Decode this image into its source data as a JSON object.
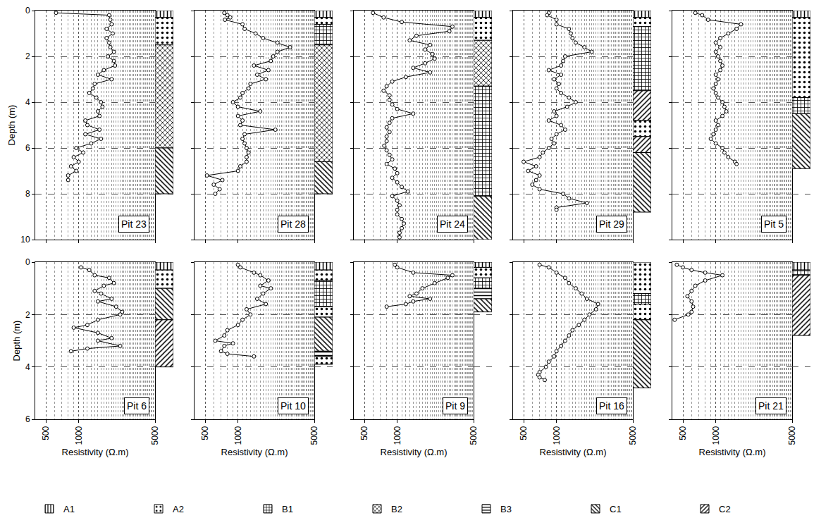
{
  "legend": "bottom",
  "units": [
    {
      "name": "A1",
      "marker": "vertical"
    },
    {
      "name": "A2",
      "marker": "dots"
    },
    {
      "name": "B1",
      "marker": "plus"
    },
    {
      "name": "B2",
      "marker": "cross"
    },
    {
      "name": "B3",
      "marker": "horizontal"
    },
    {
      "name": "C1",
      "marker": "backslash"
    },
    {
      "name": "C2",
      "marker": "slash"
    }
  ],
  "chart_data": [
    {
      "type": "line",
      "title": "Pit 23",
      "y_label": "Depth (m)",
      "color": "#000000",
      "marker": "circle",
      "log": "x",
      "grid": true,
      "tick_labels": "y",
      "xlim": [
        400,
        5000
      ],
      "xticks": [
        500,
        1000,
        5000
      ],
      "ylim": [
        0,
        10
      ],
      "yticks": [
        0,
        2,
        4,
        6,
        8,
        10
      ],
      "x": [
        620,
        1900,
        1950,
        2000,
        1800,
        2050,
        1800,
        1900,
        1950,
        2100,
        1850,
        2100,
        2150,
        1700,
        1500,
        2000,
        1400,
        1350,
        1250,
        1450,
        1600,
        1650,
        1500,
        1550,
        1150,
        1200,
        1550,
        1150,
        1600,
        1300,
        950,
        1100,
        900,
        1000,
        850,
        950,
        800,
        800
      ],
      "values": [
        0.1,
        0.2,
        0.4,
        0.6,
        0.8,
        1.0,
        1.2,
        1.4,
        1.6,
        1.8,
        2.0,
        2.2,
        2.4,
        2.6,
        2.8,
        3.0,
        3.2,
        3.4,
        3.6,
        3.8,
        4.0,
        4.2,
        4.4,
        4.6,
        4.8,
        5.0,
        5.2,
        5.4,
        5.6,
        5.8,
        6.0,
        6.2,
        6.4,
        6.6,
        6.8,
        7.0,
        7.2,
        7.4
      ],
      "layers": [
        {
          "unit": "A1",
          "top": 0,
          "bottom": 0.3
        },
        {
          "unit": "A2",
          "top": 0.3,
          "bottom": 1.5
        },
        {
          "unit": "B2",
          "top": 1.5,
          "bottom": 6.0
        },
        {
          "unit": "C1",
          "top": 6.0,
          "bottom": 8.0
        }
      ]
    },
    {
      "type": "line",
      "title": "Pit 28",
      "color": "#000000",
      "marker": "circle",
      "log": "x",
      "grid": true,
      "tick_labels": false,
      "xlim": [
        400,
        5000
      ],
      "xticks": [
        500,
        1000,
        5000
      ],
      "ylim": [
        0,
        10
      ],
      "yticks": [
        0,
        2,
        4,
        6,
        8,
        10
      ],
      "x": [
        750,
        800,
        850,
        760,
        1100,
        1150,
        1450,
        1700,
        2300,
        3000,
        2300,
        2100,
        2000,
        1400,
        1900,
        1500,
        1800,
        1300,
        1250,
        1100,
        1050,
        900,
        1000,
        1600,
        1000,
        1100,
        1050,
        2200,
        1150,
        1100,
        1150,
        1200,
        1250,
        1200,
        1200,
        1050,
        1000,
        520,
        720,
        600,
        680,
        620
      ],
      "values": [
        0.1,
        0.2,
        0.3,
        0.4,
        0.6,
        0.8,
        1.0,
        1.2,
        1.4,
        1.6,
        1.8,
        2.0,
        2.2,
        2.4,
        2.6,
        2.8,
        3.0,
        3.2,
        3.4,
        3.6,
        3.8,
        4.0,
        4.2,
        4.4,
        4.6,
        4.8,
        5.0,
        5.2,
        5.4,
        5.6,
        5.8,
        6.0,
        6.2,
        6.4,
        6.6,
        6.8,
        7.0,
        7.2,
        7.4,
        7.6,
        7.8,
        8.0
      ],
      "layers": [
        {
          "unit": "A1",
          "top": 0,
          "bottom": 0.3
        },
        {
          "unit": "A2",
          "top": 0.3,
          "bottom": 0.6
        },
        {
          "unit": "B1",
          "top": 0.6,
          "bottom": 1.5
        },
        {
          "unit": "B2",
          "top": 1.5,
          "bottom": 6.6
        },
        {
          "unit": "C1",
          "top": 6.6,
          "bottom": 8.0
        }
      ]
    },
    {
      "type": "line",
      "title": "Pit 24",
      "color": "#000000",
      "marker": "circle",
      "log": "x",
      "grid": true,
      "tick_labels": false,
      "xlim": [
        400,
        5000
      ],
      "xticks": [
        500,
        1000,
        5000
      ],
      "ylim": [
        0,
        10
      ],
      "yticks": [
        0,
        2,
        4,
        6,
        8,
        10
      ],
      "x": [
        600,
        750,
        1100,
        3200,
        3000,
        1500,
        1300,
        2000,
        1800,
        2100,
        2200,
        1800,
        1400,
        2000,
        1200,
        900,
        800,
        750,
        850,
        850,
        900,
        1000,
        1400,
        900,
        850,
        800,
        850,
        800,
        800,
        760,
        800,
        850,
        900,
        800,
        950,
        1000,
        900,
        1000,
        1100,
        1250,
        900,
        1000,
        1050,
        1000,
        1000,
        1100,
        1150,
        1100,
        1050,
        1050
      ],
      "values": [
        0.1,
        0.3,
        0.5,
        0.7,
        0.9,
        1.1,
        1.3,
        1.5,
        1.7,
        1.9,
        2.1,
        2.3,
        2.5,
        2.7,
        2.9,
        3.1,
        3.3,
        3.5,
        3.7,
        3.9,
        4.1,
        4.3,
        4.5,
        4.7,
        4.9,
        5.1,
        5.3,
        5.5,
        5.7,
        5.9,
        6.1,
        6.3,
        6.5,
        6.7,
        6.9,
        7.1,
        7.3,
        7.5,
        7.7,
        7.9,
        8.1,
        8.3,
        8.5,
        8.7,
        8.9,
        9.1,
        9.3,
        9.5,
        9.7,
        9.9
      ],
      "layers": [
        {
          "unit": "A1",
          "top": 0,
          "bottom": 0.3
        },
        {
          "unit": "A2",
          "top": 0.3,
          "bottom": 1.3
        },
        {
          "unit": "B2",
          "top": 1.3,
          "bottom": 3.3
        },
        {
          "unit": "B1",
          "top": 3.3,
          "bottom": 8.1
        },
        {
          "unit": "C1",
          "top": 8.1,
          "bottom": 10
        }
      ]
    },
    {
      "type": "line",
      "title": "Pit 29",
      "color": "#000000",
      "marker": "circle",
      "log": "x",
      "grid": true,
      "tick_labels": false,
      "xlim": [
        400,
        5000
      ],
      "xticks": [
        500,
        1000,
        5000
      ],
      "ylim": [
        0,
        10
      ],
      "yticks": [
        0,
        2,
        4,
        6,
        8,
        10
      ],
      "x": [
        850,
        820,
        1000,
        1000,
        1300,
        1350,
        1400,
        1500,
        1800,
        2100,
        1200,
        1150,
        1100,
        850,
        1100,
        950,
        1050,
        1000,
        1100,
        1300,
        1500,
        1250,
        950,
        1000,
        850,
        1100,
        1200,
        1000,
        900,
        950,
        850,
        750,
        700,
        500,
        650,
        550,
        700,
        650,
        600,
        700,
        1150,
        1300,
        1900,
        1000,
        1000
      ],
      "values": [
        0.1,
        0.2,
        0.4,
        0.6,
        0.8,
        1.0,
        1.2,
        1.4,
        1.6,
        1.8,
        2.0,
        2.2,
        2.4,
        2.6,
        2.8,
        3.0,
        3.2,
        3.4,
        3.6,
        3.8,
        4.0,
        4.2,
        4.4,
        4.6,
        4.8,
        5.0,
        5.2,
        5.4,
        5.6,
        5.8,
        6.0,
        6.2,
        6.4,
        6.6,
        6.8,
        7.0,
        7.2,
        7.4,
        7.6,
        7.8,
        8.0,
        8.2,
        8.4,
        8.6,
        8.7
      ],
      "layers": [
        {
          "unit": "A1",
          "top": 0,
          "bottom": 0.3
        },
        {
          "unit": "A2",
          "top": 0.3,
          "bottom": 0.7
        },
        {
          "unit": "B1",
          "top": 0.7,
          "bottom": 3.5
        },
        {
          "unit": "C2",
          "top": 3.5,
          "bottom": 4.8
        },
        {
          "unit": "A2",
          "top": 4.8,
          "bottom": 5.5
        },
        {
          "unit": "C2",
          "top": 5.5,
          "bottom": 6.2
        },
        {
          "unit": "C1",
          "top": 6.2,
          "bottom": 8.8
        }
      ]
    },
    {
      "type": "line",
      "title": "Pit 5",
      "color": "#000000",
      "marker": "circle",
      "log": "x",
      "grid": true,
      "tick_labels": false,
      "xlim": [
        400,
        5000
      ],
      "xticks": [
        500,
        1000,
        5000
      ],
      "ylim": [
        0,
        10
      ],
      "yticks": [
        0,
        2,
        4,
        6,
        8,
        10
      ],
      "x": [
        650,
        750,
        850,
        1700,
        1550,
        1300,
        1100,
        1000,
        1100,
        1000,
        1050,
        1100,
        1150,
        1100,
        1000,
        1050,
        1000,
        950,
        1000,
        1050,
        1150,
        1200,
        1250,
        1150,
        1000,
        1050,
        1000,
        950,
        900,
        1000,
        1150,
        1200,
        1300,
        1500,
        1550
      ],
      "values": [
        0.1,
        0.2,
        0.4,
        0.6,
        0.8,
        1.0,
        1.2,
        1.4,
        1.6,
        1.8,
        2.0,
        2.2,
        2.4,
        2.6,
        2.8,
        3.0,
        3.2,
        3.4,
        3.6,
        3.8,
        4.0,
        4.2,
        4.4,
        4.6,
        4.8,
        5.0,
        5.2,
        5.4,
        5.6,
        5.8,
        6.0,
        6.2,
        6.4,
        6.6,
        6.7
      ],
      "layers": [
        {
          "unit": "A1",
          "top": 0,
          "bottom": 0.3
        },
        {
          "unit": "A2",
          "top": 0.3,
          "bottom": 3.8
        },
        {
          "unit": "B1",
          "top": 3.8,
          "bottom": 4.5
        },
        {
          "unit": "C1",
          "top": 4.5,
          "bottom": 6.9
        }
      ]
    },
    {
      "type": "line",
      "title": "Pit 6",
      "x_label": "Resistivity (Ω.m)",
      "y_label": "Depth (m)",
      "color": "#000000",
      "marker": "circle",
      "log": "x",
      "grid": true,
      "tick_labels": true,
      "xlim": [
        400,
        5000
      ],
      "xticks": [
        500,
        1000,
        5000
      ],
      "ylim": [
        0,
        6
      ],
      "yticks": [
        0,
        2,
        4,
        6
      ],
      "x": [
        1050,
        1250,
        1400,
        1900,
        2100,
        1700,
        1400,
        1600,
        2000,
        1500,
        2200,
        2500,
        2400,
        1500,
        1200,
        900,
        1500,
        2000,
        1500,
        2400,
        1200,
        850
      ],
      "values": [
        0.2,
        0.3,
        0.5,
        0.6,
        0.8,
        0.9,
        1.1,
        1.2,
        1.4,
        1.5,
        1.7,
        1.9,
        2.0,
        2.2,
        2.4,
        2.5,
        2.7,
        2.9,
        3.0,
        3.2,
        3.3,
        3.4
      ],
      "layers": [
        {
          "unit": "A1",
          "top": 0,
          "bottom": 0.3
        },
        {
          "unit": "A2",
          "top": 0.3,
          "bottom": 1.0
        },
        {
          "unit": "C1",
          "top": 1.0,
          "bottom": 2.2
        },
        {
          "unit": "C2",
          "top": 2.2,
          "bottom": 4.0
        }
      ]
    },
    {
      "type": "line",
      "title": "Pit 10",
      "x_label": "Resistivity (Ω.m)",
      "color": "#000000",
      "marker": "circle",
      "log": "x",
      "grid": true,
      "tick_labels": "x",
      "xlim": [
        400,
        5000
      ],
      "xticks": [
        500,
        1000,
        5000
      ],
      "ylim": [
        0,
        6
      ],
      "yticks": [
        0,
        2,
        4,
        6
      ],
      "x": [
        1000,
        1050,
        1400,
        1600,
        1900,
        1600,
        2000,
        1700,
        1500,
        1800,
        1200,
        1300,
        1100,
        1000,
        800,
        750,
        620,
        900,
        750,
        700,
        800,
        1400
      ],
      "values": [
        0.1,
        0.2,
        0.4,
        0.5,
        0.7,
        0.9,
        1.0,
        1.2,
        1.4,
        1.6,
        1.8,
        2.0,
        2.2,
        2.4,
        2.6,
        2.8,
        3.0,
        3.1,
        3.2,
        3.4,
        3.5,
        3.6
      ],
      "layers": [
        {
          "unit": "A1",
          "top": 0,
          "bottom": 0.3
        },
        {
          "unit": "A2",
          "top": 0.3,
          "bottom": 0.7
        },
        {
          "unit": "B1",
          "top": 0.7,
          "bottom": 1.7
        },
        {
          "unit": "A2",
          "top": 1.7,
          "bottom": 2.1
        },
        {
          "unit": "C1",
          "top": 2.1,
          "bottom": 3.4
        },
        {
          "unit": "B3",
          "top": 3.4,
          "bottom": 3.6
        },
        {
          "unit": "A2",
          "top": 3.6,
          "bottom": 3.9
        }
      ]
    },
    {
      "type": "line",
      "title": "Pit 9",
      "x_label": "Resistivity (Ω.m)",
      "color": "#000000",
      "marker": "circle",
      "log": "x",
      "grid": true,
      "tick_labels": "x",
      "xlim": [
        400,
        5000
      ],
      "xticks": [
        500,
        1000,
        5000
      ],
      "ylim": [
        0,
        6
      ],
      "yticks": [
        0,
        2,
        4,
        6
      ],
      "x": [
        950,
        1000,
        1400,
        3200,
        2900,
        2200,
        1700,
        1500,
        1300,
        2000,
        1400,
        1200,
        800
      ],
      "values": [
        0.1,
        0.2,
        0.4,
        0.5,
        0.6,
        0.8,
        1.0,
        1.2,
        1.3,
        1.4,
        1.5,
        1.6,
        1.7
      ],
      "layers": [
        {
          "unit": "A1",
          "top": 0,
          "bottom": 0.2
        },
        {
          "unit": "A2",
          "top": 0.2,
          "bottom": 0.6
        },
        {
          "unit": "B1",
          "top": 0.6,
          "bottom": 1.0
        },
        {
          "unit": "B3",
          "top": 1.0,
          "bottom": 1.4
        },
        {
          "unit": "C1",
          "top": 1.4,
          "bottom": 1.9
        }
      ]
    },
    {
      "type": "line",
      "title": "Pit 16",
      "x_label": "Resistivity (Ω.m)",
      "color": "#000000",
      "marker": "circle",
      "log": "x",
      "grid": true,
      "tick_labels": "x",
      "xlim": [
        400,
        5000
      ],
      "xticks": [
        500,
        1000,
        5000
      ],
      "ylim": [
        0,
        6
      ],
      "yticks": [
        0,
        2,
        4,
        6
      ],
      "x": [
        700,
        850,
        1000,
        1200,
        1300,
        1500,
        1700,
        1900,
        2400,
        2300,
        2000,
        1800,
        1600,
        1400,
        1300,
        1200,
        1100,
        1000,
        950,
        850,
        800,
        700,
        680,
        700,
        780
      ],
      "values": [
        0.1,
        0.2,
        0.4,
        0.6,
        0.8,
        1.0,
        1.2,
        1.4,
        1.6,
        1.8,
        2.0,
        2.2,
        2.4,
        2.6,
        2.8,
        3.0,
        3.2,
        3.4,
        3.6,
        3.8,
        4.0,
        4.2,
        4.3,
        4.4,
        4.5
      ],
      "layers": [
        {
          "unit": "A2",
          "top": 0,
          "bottom": 1.2
        },
        {
          "unit": "B1",
          "top": 1.2,
          "bottom": 1.6
        },
        {
          "unit": "A2",
          "top": 1.6,
          "bottom": 2.2
        },
        {
          "unit": "C1",
          "top": 2.2,
          "bottom": 4.8
        }
      ]
    },
    {
      "type": "line",
      "title": "Pit 21",
      "x_label": "Resistivity (Ω.m)",
      "color": "#000000",
      "marker": "circle",
      "log": "x",
      "grid": true,
      "tick_labels": "x",
      "xlim": [
        400,
        5000
      ],
      "xticks": [
        500,
        1000,
        5000
      ],
      "ylim": [
        0,
        6
      ],
      "yticks": [
        0,
        2,
        4,
        6
      ],
      "x": [
        440,
        500,
        600,
        800,
        1150,
        800,
        650,
        600,
        550,
        600,
        620,
        600,
        560,
        420
      ],
      "values": [
        0.1,
        0.2,
        0.3,
        0.4,
        0.5,
        0.7,
        0.9,
        1.1,
        1.3,
        1.5,
        1.7,
        1.9,
        2.0,
        2.2
      ],
      "layers": [
        {
          "unit": "A1",
          "top": 0,
          "bottom": 0.3
        },
        {
          "unit": "B1",
          "top": 0.3,
          "bottom": 0.5
        },
        {
          "unit": "C2",
          "top": 0.5,
          "bottom": 2.8
        }
      ]
    }
  ]
}
